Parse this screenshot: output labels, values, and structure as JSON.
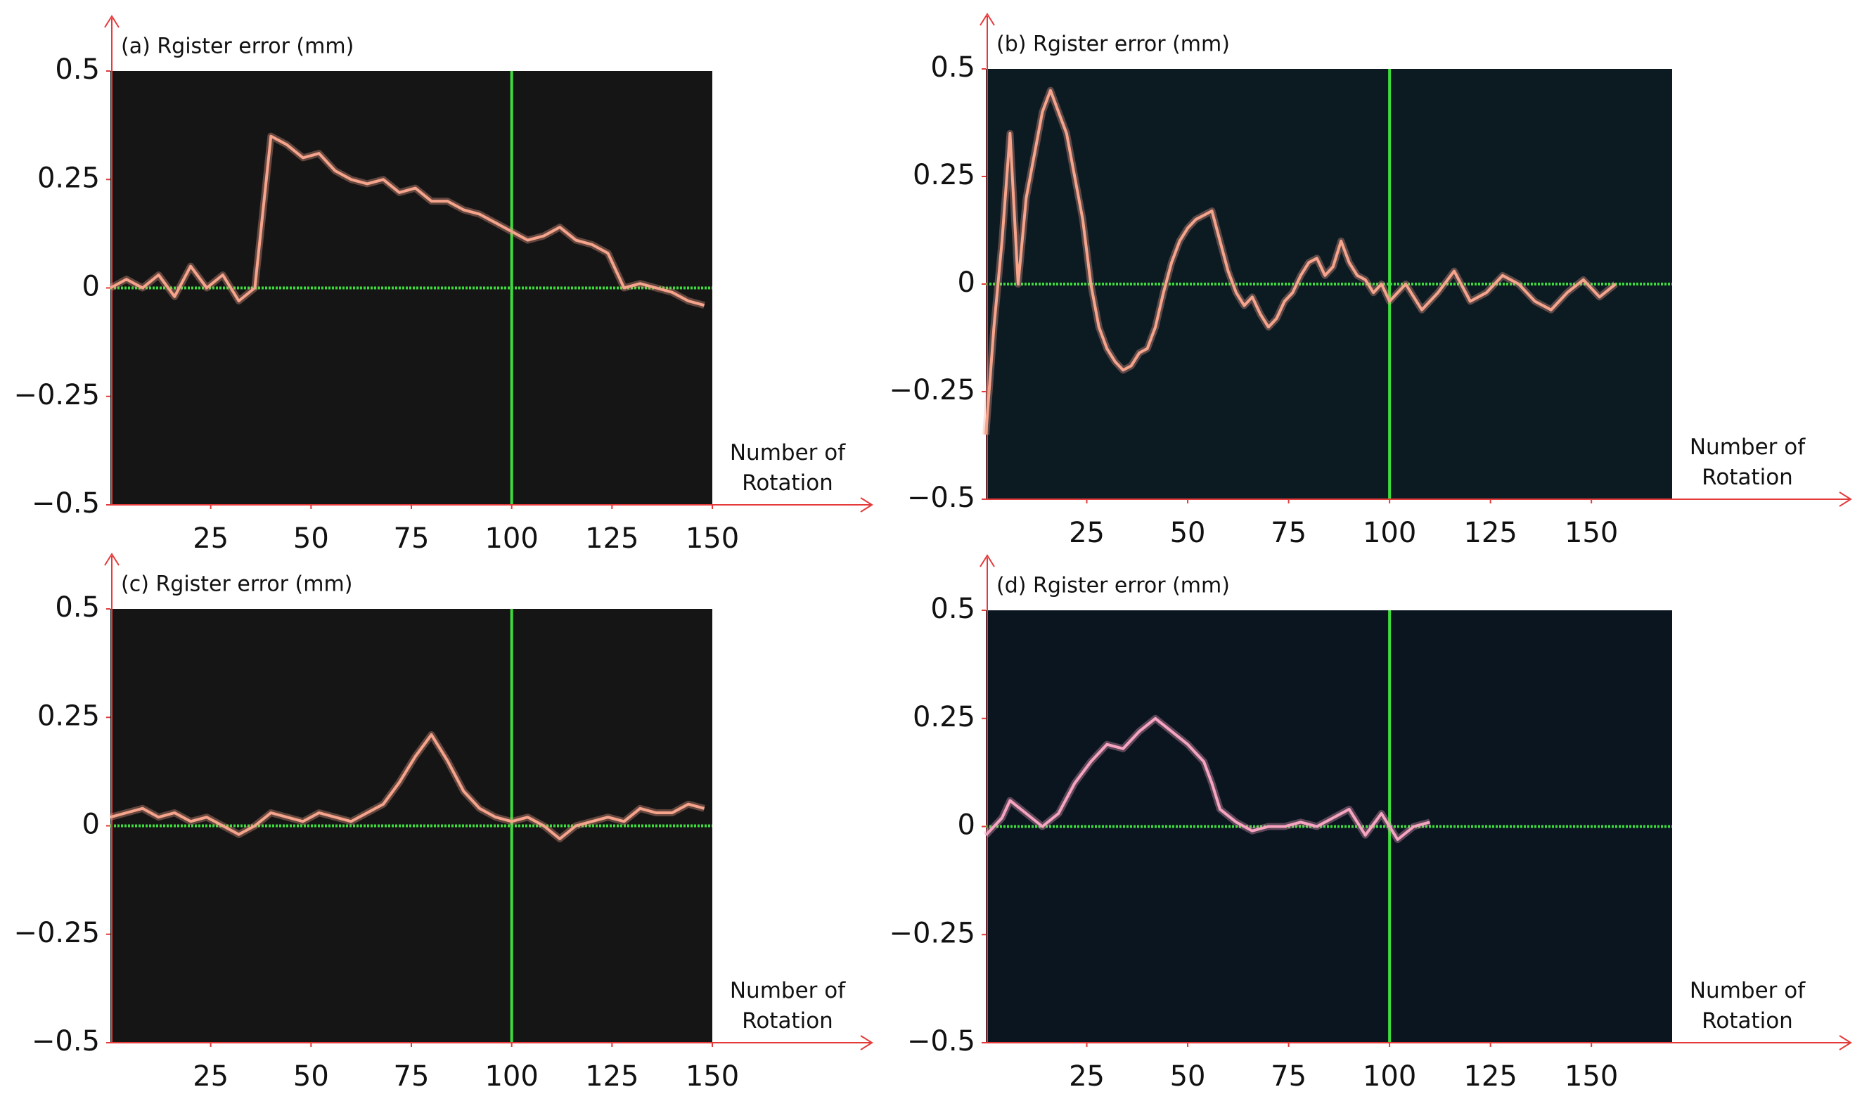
{
  "chart_data": [
    {
      "type": "line",
      "title": "(a) Rgister error (mm)",
      "x_label": "Number of Rotation",
      "x": [
        0,
        4,
        8,
        12,
        16,
        20,
        24,
        28,
        32,
        36,
        40,
        44,
        48,
        52,
        56,
        60,
        64,
        68,
        72,
        76,
        80,
        84,
        88,
        92,
        96,
        100,
        104,
        108,
        112,
        116,
        120,
        124,
        128,
        132,
        136,
        140,
        144,
        148
      ],
      "series": [
        {
          "name": "error",
          "color": "#f6a48c",
          "values": [
            0,
            0.02,
            0,
            0.03,
            -0.02,
            0.05,
            0,
            0.03,
            -0.03,
            0,
            0.35,
            0.33,
            0.3,
            0.31,
            0.27,
            0.25,
            0.24,
            0.25,
            0.22,
            0.23,
            0.2,
            0.2,
            0.18,
            0.17,
            0.15,
            0.13,
            0.11,
            0.12,
            0.14,
            0.11,
            0.1,
            0.08,
            0,
            0.01,
            0,
            -0.01,
            -0.03,
            -0.04
          ]
        }
      ],
      "xlim": [
        0,
        150
      ],
      "xticks": [
        25,
        50,
        75,
        100,
        125,
        150
      ],
      "ylim": [
        -0.5,
        0.5
      ],
      "yticks": [
        {
          "value": -0.5,
          "label": "−0.5"
        },
        {
          "value": -0.25,
          "label": "−0.25"
        },
        0,
        0.25,
        0.5
      ],
      "crosshair": {
        "x": 100,
        "y": 0,
        "color": "#3ddc3d"
      },
      "background": "#151515"
    },
    {
      "type": "line",
      "title": "(b) Rgister error (mm)",
      "x_label": "Number of Rotation",
      "x": [
        0,
        2,
        4,
        6,
        8,
        10,
        12,
        14,
        16,
        18,
        20,
        22,
        24,
        26,
        28,
        30,
        32,
        34,
        36,
        38,
        40,
        42,
        44,
        46,
        48,
        50,
        52,
        54,
        56,
        58,
        60,
        62,
        64,
        66,
        68,
        70,
        72,
        74,
        76,
        78,
        80,
        82,
        84,
        86,
        88,
        90,
        92,
        94,
        96,
        98,
        100,
        104,
        108,
        112,
        116,
        120,
        124,
        128,
        132,
        136,
        140,
        144,
        148,
        152,
        156
      ],
      "series": [
        {
          "name": "error",
          "color": "#f6a48c",
          "values": [
            -0.35,
            -0.1,
            0.1,
            0.35,
            0,
            0.2,
            0.3,
            0.4,
            0.45,
            0.4,
            0.35,
            0.25,
            0.15,
            0,
            -0.1,
            -0.15,
            -0.18,
            -0.2,
            -0.19,
            -0.16,
            -0.15,
            -0.1,
            -0.02,
            0.05,
            0.1,
            0.13,
            0.15,
            0.16,
            0.17,
            0.1,
            0.03,
            -0.02,
            -0.05,
            -0.03,
            -0.07,
            -0.1,
            -0.08,
            -0.04,
            -0.02,
            0.02,
            0.05,
            0.06,
            0.02,
            0.04,
            0.1,
            0.05,
            0.02,
            0.01,
            -0.02,
            0,
            -0.04,
            0,
            -0.06,
            -0.02,
            0.03,
            -0.04,
            -0.02,
            0.02,
            0,
            -0.04,
            -0.06,
            -0.02,
            0.01,
            -0.03,
            0
          ]
        }
      ],
      "xlim": [
        0,
        170
      ],
      "xticks": [
        25,
        50,
        75,
        100,
        125,
        150
      ],
      "ylim": [
        -0.5,
        0.5
      ],
      "yticks": [
        {
          "value": -0.5,
          "label": "−0.5"
        },
        {
          "value": -0.25,
          "label": "−0.25"
        },
        0,
        0.25,
        0.5
      ],
      "crosshair": {
        "x": 100,
        "y": 0,
        "color": "#3ddc3d"
      },
      "background": "#0c1a22"
    },
    {
      "type": "line",
      "title": "(c) Rgister error (mm)",
      "x_label": "Number of Rotation",
      "x": [
        0,
        4,
        8,
        12,
        16,
        20,
        24,
        28,
        32,
        36,
        40,
        44,
        48,
        52,
        56,
        60,
        64,
        68,
        72,
        76,
        80,
        84,
        88,
        92,
        96,
        100,
        104,
        108,
        112,
        116,
        120,
        124,
        128,
        132,
        136,
        140,
        144,
        148
      ],
      "series": [
        {
          "name": "error",
          "color": "#f6a48c",
          "values": [
            0.02,
            0.03,
            0.04,
            0.02,
            0.03,
            0.01,
            0.02,
            0,
            -0.02,
            0,
            0.03,
            0.02,
            0.01,
            0.03,
            0.02,
            0.01,
            0.03,
            0.05,
            0.1,
            0.16,
            0.21,
            0.15,
            0.08,
            0.04,
            0.02,
            0.01,
            0.02,
            0,
            -0.03,
            0,
            0.01,
            0.02,
            0.01,
            0.04,
            0.03,
            0.03,
            0.05,
            0.04
          ]
        }
      ],
      "xlim": [
        0,
        150
      ],
      "xticks": [
        25,
        50,
        75,
        100,
        125,
        150
      ],
      "ylim": [
        -0.5,
        0.5
      ],
      "yticks": [
        {
          "value": -0.5,
          "label": "−0.5"
        },
        {
          "value": -0.25,
          "label": "−0.25"
        },
        0,
        0.25,
        0.5
      ],
      "crosshair": {
        "x": 100,
        "y": 0,
        "color": "#3ddc3d"
      },
      "background": "#151515"
    },
    {
      "type": "line",
      "title": "(d) Rgister error (mm)",
      "x_label": "Number of Rotation",
      "x": [
        0,
        4,
        6,
        10,
        14,
        18,
        22,
        26,
        30,
        34,
        38,
        42,
        46,
        50,
        54,
        56,
        58,
        62,
        66,
        70,
        74,
        78,
        82,
        86,
        90,
        94,
        98,
        102,
        106,
        110
      ],
      "series": [
        {
          "name": "error",
          "color": "#f6a4c0",
          "values": [
            -0.02,
            0.02,
            0.06,
            0.03,
            0,
            0.03,
            0.1,
            0.15,
            0.19,
            0.18,
            0.22,
            0.25,
            0.22,
            0.19,
            0.15,
            0.1,
            0.04,
            0.01,
            -0.01,
            0,
            0,
            0.01,
            0,
            0.02,
            0.04,
            -0.02,
            0.03,
            -0.03,
            0,
            0.01
          ]
        }
      ],
      "xlim": [
        0,
        170
      ],
      "xticks": [
        25,
        50,
        75,
        100,
        125,
        150
      ],
      "ylim": [
        -0.5,
        0.5
      ],
      "yticks": [
        {
          "value": -0.5,
          "label": "−0.5"
        },
        {
          "value": -0.25,
          "label": "−0.25"
        },
        0,
        0.25,
        0.5
      ],
      "crosshair": {
        "x": 100,
        "y": 0,
        "color": "#3ddc3d"
      },
      "background": "#0a1520"
    }
  ]
}
